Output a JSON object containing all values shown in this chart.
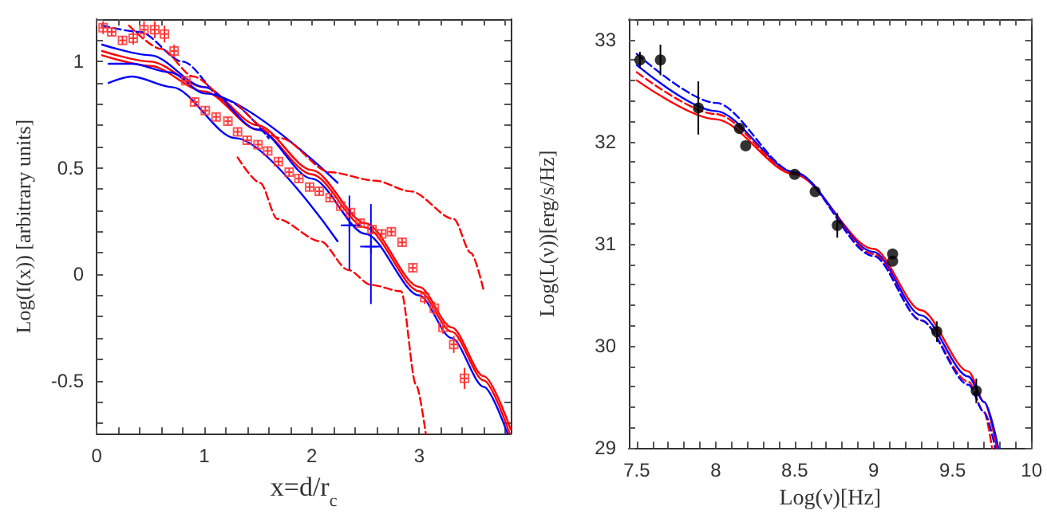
{
  "chart_data": [
    {
      "type": "scatter",
      "xlabel": "x=d/r$_{c}$",
      "ylabel": "Log(I(x)) [arbitrary units]",
      "xlim": [
        0,
        3.85
      ],
      "ylim": [
        -0.75,
        1.2
      ],
      "xticks": [
        0,
        1,
        2,
        3
      ],
      "yticks": [
        -0.5,
        0,
        0.5,
        1
      ],
      "series": [
        {
          "type": "line",
          "color": "#ff0000",
          "line_style": "solid",
          "marker": "none",
          "x": [
            0.05,
            0.5,
            1,
            1.5,
            2,
            2.5,
            3,
            3.3,
            3.6,
            3.84
          ],
          "values": [
            1.03,
            0.98,
            0.86,
            0.68,
            0.47,
            0.22,
            -0.08,
            -0.27,
            -0.5,
            -0.75
          ]
        },
        {
          "type": "line",
          "color": "#ff0000",
          "line_style": "solid",
          "marker": "none",
          "x": [
            0.05,
            0.5,
            1,
            1.5,
            2,
            2.5,
            3,
            3.3,
            3.6,
            3.85
          ],
          "values": [
            1.05,
            1.0,
            0.88,
            0.7,
            0.49,
            0.24,
            -0.06,
            -0.25,
            -0.48,
            -0.73
          ]
        },
        {
          "type": "line",
          "color": "#0000ff",
          "line_style": "solid",
          "marker": "none",
          "x": [
            0.05,
            0.5,
            1,
            1.5,
            2,
            2.5,
            3,
            3.3,
            3.6,
            3.82
          ],
          "values": [
            1.08,
            1.03,
            0.88,
            0.68,
            0.45,
            0.19,
            -0.1,
            -0.3,
            -0.53,
            -0.75
          ]
        },
        {
          "type": "line",
          "color": "#0000ff",
          "line_style": "dashed",
          "marker": "none",
          "x": [
            0.05,
            0.4,
            0.8,
            1.2,
            1.6
          ],
          "values": [
            1.17,
            1.14,
            1.0,
            0.82,
            0.64
          ]
        },
        {
          "type": "line",
          "color": "#ff0000",
          "line_style": "dashed",
          "marker": "none",
          "x": [
            0.3,
            0.6,
            0.9,
            1.2
          ],
          "values": [
            1.17,
            1.06,
            0.93,
            0.8
          ]
        },
        {
          "type": "line",
          "color": "#0000ff",
          "line_style": "solid",
          "marker": "none",
          "x": [
            0.11,
            0.33,
            0.68,
            1.01,
            2.24
          ],
          "values": [
            0.99,
            0.99,
            0.95,
            0.85,
            0.43
          ]
        },
        {
          "type": "line",
          "color": "#0000ff",
          "line_style": "solid",
          "marker": "none",
          "x": [
            0.11,
            0.33,
            0.7,
            1.29,
            2.24
          ],
          "values": [
            0.9,
            0.93,
            0.88,
            0.64,
            0.155
          ]
        },
        {
          "type": "line",
          "color": "#ff0000",
          "line_style": "dashed",
          "marker": "none",
          "x": [
            1.31,
            1.71,
            2.17,
            2.59,
            2.92,
            3.32,
            3.48,
            3.6
          ],
          "values": [
            0.8,
            0.64,
            0.48,
            0.44,
            0.39,
            0.26,
            0.1,
            -0.08
          ]
        },
        {
          "type": "line",
          "color": "#ff0000",
          "line_style": "dashed",
          "marker": "none",
          "x": [
            1.31,
            1.52,
            1.68,
            2.08,
            2.34,
            2.55,
            2.83,
            2.97,
            3.06
          ],
          "values": [
            0.55,
            0.43,
            0.26,
            0.155,
            0.02,
            -0.05,
            -0.08,
            -0.52,
            -0.75
          ]
        },
        {
          "color": "#ff3030",
          "marker": "square",
          "x": [
            0.06,
            0.14,
            0.24,
            0.34,
            0.44,
            0.54,
            0.63,
            0.72,
            0.83,
            0.91,
            1.01,
            1.11,
            1.22,
            1.31,
            1.4,
            1.5,
            1.59,
            1.69,
            1.79,
            1.88,
            1.98,
            2.07,
            2.17,
            2.27,
            2.36,
            2.45,
            2.56,
            2.65,
            2.74,
            2.84,
            2.94,
            3.05,
            3.14,
            3.22,
            3.32,
            3.42
          ],
          "values": [
            1.16,
            1.14,
            1.1,
            1.11,
            1.15,
            1.15,
            1.13,
            1.05,
            0.91,
            0.81,
            0.77,
            0.74,
            0.72,
            0.67,
            0.63,
            0.61,
            0.58,
            0.53,
            0.48,
            0.45,
            0.41,
            0.39,
            0.36,
            0.32,
            0.29,
            0.24,
            0.21,
            0.19,
            0.2,
            0.15,
            0.03,
            -0.11,
            -0.16,
            -0.25,
            -0.33,
            -0.49
          ],
          "errors": [
            0.03,
            0.02,
            0.02,
            0.03,
            0.04,
            0.04,
            0.04,
            0.03,
            0.02,
            0.02,
            0.02,
            0.02,
            0.02,
            0.02,
            0.02,
            0.02,
            0.02,
            0.02,
            0.02,
            0.02,
            0.02,
            0.02,
            0.02,
            0.02,
            0.02,
            0.02,
            0.02,
            0.02,
            0.02,
            0.02,
            0.02,
            0.03,
            0.03,
            0.03,
            0.04,
            0.05
          ],
          "xerrors": [
            0.03,
            0.03,
            0.03,
            0.03,
            0.03,
            0.03,
            0.03,
            0.03,
            0.03,
            0.03,
            0.03,
            0.03,
            0.03,
            0.03,
            0.03,
            0.03,
            0.03,
            0.03,
            0.03,
            0.03,
            0.03,
            0.03,
            0.03,
            0.03,
            0.03,
            0.03,
            0.03,
            0.03,
            0.03,
            0.03,
            0.03,
            0.03,
            0.03,
            0.03,
            0.03,
            0.03
          ]
        },
        {
          "color": "#0000ff",
          "marker": "cross",
          "x": [
            2.35,
            2.55
          ],
          "values": [
            0.23,
            0.13
          ],
          "errors": [
            [
              0.02,
              0.37
            ],
            [
              -0.14,
              0.33
            ]
          ],
          "xerrors": [
            [
              2.27,
              2.45
            ],
            [
              2.45,
              2.65
            ]
          ]
        }
      ]
    },
    {
      "type": "scatter",
      "xlabel": "Log(ν)[Hz]",
      "ylabel": "Log(L(ν))[erg/s/Hz]",
      "xlim": [
        7.45,
        10
      ],
      "ylim": [
        29,
        33.2
      ],
      "xticks": [
        7.5,
        8,
        8.5,
        9,
        9.5,
        10
      ],
      "yticks": [
        29,
        30,
        31,
        32,
        33
      ],
      "series": [
        {
          "type": "line",
          "color": "#ff0000",
          "line_style": "solid",
          "marker": "none",
          "x": [
            7.5,
            8,
            8.5,
            9,
            9.3,
            9.6,
            9.7,
            9.78
          ],
          "values": [
            32.6,
            32.22,
            31.68,
            30.95,
            30.35,
            29.75,
            29.45,
            29.0
          ]
        },
        {
          "type": "line",
          "color": "#0000ff",
          "line_style": "solid",
          "marker": "none",
          "x": [
            7.5,
            8,
            8.5,
            9,
            9.3,
            9.6,
            9.7,
            9.79
          ],
          "values": [
            32.75,
            32.3,
            31.7,
            30.92,
            30.3,
            29.7,
            29.45,
            29.0
          ]
        },
        {
          "type": "line",
          "color": "#ff0000",
          "line_style": "dashed",
          "marker": "none",
          "x": [
            7.5,
            8,
            8.5,
            9,
            9.3,
            9.6,
            9.7,
            9.75
          ],
          "values": [
            32.68,
            32.27,
            31.69,
            30.9,
            30.25,
            29.65,
            29.35,
            29.0
          ]
        },
        {
          "type": "line",
          "color": "#0000ff",
          "line_style": "dashed",
          "marker": "none",
          "x": [
            7.5,
            8,
            8.5,
            9,
            9.3,
            9.6,
            9.7,
            9.77
          ],
          "values": [
            32.86,
            32.38,
            31.7,
            30.88,
            30.25,
            29.62,
            29.35,
            29.0
          ]
        },
        {
          "color": "#000000",
          "marker": "circle",
          "x": [
            7.52,
            7.65,
            7.89,
            8.15,
            8.19,
            8.5,
            8.63,
            8.77,
            9.12,
            9.12,
            9.4,
            9.65
          ],
          "values": [
            32.8,
            32.8,
            32.33,
            32.13,
            31.96,
            31.68,
            31.51,
            31.18,
            30.9,
            30.83,
            30.14,
            29.56
          ],
          "errors": [
            0.08,
            0.15,
            0.26,
            null,
            null,
            null,
            null,
            0.12,
            null,
            null,
            0.1,
            0.12
          ]
        }
      ]
    }
  ]
}
